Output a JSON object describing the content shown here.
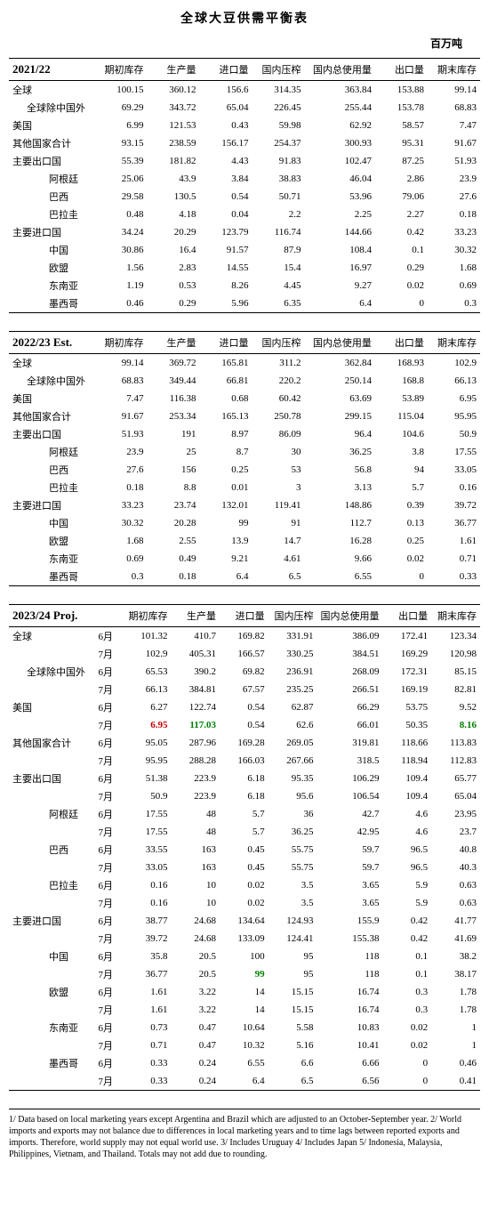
{
  "title": "全球大豆供需平衡表",
  "unit": "百万吨",
  "columns": [
    "期初库存",
    "生产量",
    "进口量",
    "国内压榨",
    "国内总使用量",
    "出口量",
    "期末库存"
  ],
  "sections": [
    {
      "name": "2021/22",
      "hasMonth": false,
      "rows": [
        {
          "label": "全球",
          "indent": 0,
          "vals": [
            "100.15",
            "360.12",
            "156.6",
            "314.35",
            "363.84",
            "153.88",
            "99.14"
          ]
        },
        {
          "label": "全球除中国外",
          "indent": 1,
          "vals": [
            "69.29",
            "343.72",
            "65.04",
            "226.45",
            "255.44",
            "153.78",
            "68.83"
          ]
        },
        {
          "label": "美国",
          "indent": 0,
          "vals": [
            "6.99",
            "121.53",
            "0.43",
            "59.98",
            "62.92",
            "58.57",
            "7.47"
          ]
        },
        {
          "label": "其他国家合计",
          "indent": 0,
          "vals": [
            "93.15",
            "238.59",
            "156.17",
            "254.37",
            "300.93",
            "95.31",
            "91.67"
          ]
        },
        {
          "label": "主要出口国",
          "indent": 0,
          "vals": [
            "55.39",
            "181.82",
            "4.43",
            "91.83",
            "102.47",
            "87.25",
            "51.93"
          ]
        },
        {
          "label": "阿根廷",
          "indent": 2,
          "vals": [
            "25.06",
            "43.9",
            "3.84",
            "38.83",
            "46.04",
            "2.86",
            "23.9"
          ]
        },
        {
          "label": "巴西",
          "indent": 2,
          "vals": [
            "29.58",
            "130.5",
            "0.54",
            "50.71",
            "53.96",
            "79.06",
            "27.6"
          ]
        },
        {
          "label": "巴拉圭",
          "indent": 2,
          "vals": [
            "0.48",
            "4.18",
            "0.04",
            "2.2",
            "2.25",
            "2.27",
            "0.18"
          ]
        },
        {
          "label": "主要进口国",
          "indent": 0,
          "vals": [
            "34.24",
            "20.29",
            "123.79",
            "116.74",
            "144.66",
            "0.42",
            "33.23"
          ]
        },
        {
          "label": "中国",
          "indent": 2,
          "vals": [
            "30.86",
            "16.4",
            "91.57",
            "87.9",
            "108.4",
            "0.1",
            "30.32"
          ]
        },
        {
          "label": "欧盟",
          "indent": 2,
          "vals": [
            "1.56",
            "2.83",
            "14.55",
            "15.4",
            "16.97",
            "0.29",
            "1.68"
          ]
        },
        {
          "label": "东南亚",
          "indent": 2,
          "vals": [
            "1.19",
            "0.53",
            "8.26",
            "4.45",
            "9.27",
            "0.02",
            "0.69"
          ]
        },
        {
          "label": "墨西哥",
          "indent": 2,
          "vals": [
            "0.46",
            "0.29",
            "5.96",
            "6.35",
            "6.4",
            "0",
            "0.3"
          ]
        }
      ]
    },
    {
      "name": "2022/23 Est.",
      "hasMonth": false,
      "rows": [
        {
          "label": "全球",
          "indent": 0,
          "vals": [
            "99.14",
            "369.72",
            "165.81",
            "311.2",
            "362.84",
            "168.93",
            "102.9"
          ]
        },
        {
          "label": "全球除中国外",
          "indent": 1,
          "vals": [
            "68.83",
            "349.44",
            "66.81",
            "220.2",
            "250.14",
            "168.8",
            "66.13"
          ]
        },
        {
          "label": "美国",
          "indent": 0,
          "vals": [
            "7.47",
            "116.38",
            "0.68",
            "60.42",
            "63.69",
            "53.89",
            "6.95"
          ]
        },
        {
          "label": "其他国家合计",
          "indent": 0,
          "vals": [
            "91.67",
            "253.34",
            "165.13",
            "250.78",
            "299.15",
            "115.04",
            "95.95"
          ]
        },
        {
          "label": "主要出口国",
          "indent": 0,
          "vals": [
            "51.93",
            "191",
            "8.97",
            "86.09",
            "96.4",
            "104.6",
            "50.9"
          ]
        },
        {
          "label": "阿根廷",
          "indent": 2,
          "vals": [
            "23.9",
            "25",
            "8.7",
            "30",
            "36.25",
            "3.8",
            "17.55"
          ]
        },
        {
          "label": "巴西",
          "indent": 2,
          "vals": [
            "27.6",
            "156",
            "0.25",
            "53",
            "56.8",
            "94",
            "33.05"
          ]
        },
        {
          "label": "巴拉圭",
          "indent": 2,
          "vals": [
            "0.18",
            "8.8",
            "0.01",
            "3",
            "3.13",
            "5.7",
            "0.16"
          ]
        },
        {
          "label": "主要进口国",
          "indent": 0,
          "vals": [
            "33.23",
            "23.74",
            "132.01",
            "119.41",
            "148.86",
            "0.39",
            "39.72"
          ]
        },
        {
          "label": "中国",
          "indent": 2,
          "vals": [
            "30.32",
            "20.28",
            "99",
            "91",
            "112.7",
            "0.13",
            "36.77"
          ]
        },
        {
          "label": "欧盟",
          "indent": 2,
          "vals": [
            "1.68",
            "2.55",
            "13.9",
            "14.7",
            "16.28",
            "0.25",
            "1.61"
          ]
        },
        {
          "label": "东南亚",
          "indent": 2,
          "vals": [
            "0.69",
            "0.49",
            "9.21",
            "4.61",
            "9.66",
            "0.02",
            "0.71"
          ]
        },
        {
          "label": "墨西哥",
          "indent": 2,
          "vals": [
            "0.3",
            "0.18",
            "6.4",
            "6.5",
            "6.55",
            "0",
            "0.33"
          ]
        }
      ]
    },
    {
      "name": "2023/24 Proj.",
      "hasMonth": true,
      "rows": [
        {
          "label": "全球",
          "indent": 0,
          "month": "6月",
          "vals": [
            "101.32",
            "410.7",
            "169.82",
            "331.91",
            "386.09",
            "172.41",
            "123.34"
          ]
        },
        {
          "label": "",
          "indent": 0,
          "month": "7月",
          "vals": [
            "102.9",
            "405.31",
            "166.57",
            "330.25",
            "384.51",
            "169.29",
            "120.98"
          ]
        },
        {
          "label": "全球除中国外",
          "indent": 1,
          "month": "6月",
          "vals": [
            "65.53",
            "390.2",
            "69.82",
            "236.91",
            "268.09",
            "172.31",
            "85.15"
          ]
        },
        {
          "label": "",
          "indent": 1,
          "month": "7月",
          "vals": [
            "66.13",
            "384.81",
            "67.57",
            "235.25",
            "266.51",
            "169.19",
            "82.81"
          ]
        },
        {
          "label": "美国",
          "indent": 0,
          "month": "6月",
          "vals": [
            "6.27",
            "122.74",
            "0.54",
            "62.87",
            "66.29",
            "53.75",
            "9.52"
          ]
        },
        {
          "label": "",
          "indent": 0,
          "month": "7月",
          "vals": [
            {
              "v": "6.95",
              "c": "red"
            },
            {
              "v": "117.03",
              "c": "green"
            },
            "0.54",
            "62.6",
            "66.01",
            "50.35",
            {
              "v": "8.16",
              "c": "green"
            }
          ]
        },
        {
          "label": "其他国家合计",
          "indent": 0,
          "month": "6月",
          "vals": [
            "95.05",
            "287.96",
            "169.28",
            "269.05",
            "319.81",
            "118.66",
            "113.83"
          ]
        },
        {
          "label": "",
          "indent": 0,
          "month": "7月",
          "vals": [
            "95.95",
            "288.28",
            "166.03",
            "267.66",
            "318.5",
            "118.94",
            "112.83"
          ]
        },
        {
          "label": "主要出口国",
          "indent": 0,
          "month": "6月",
          "vals": [
            "51.38",
            "223.9",
            "6.18",
            "95.35",
            "106.29",
            "109.4",
            "65.77"
          ]
        },
        {
          "label": "",
          "indent": 0,
          "month": "7月",
          "vals": [
            "50.9",
            "223.9",
            "6.18",
            "95.6",
            "106.54",
            "109.4",
            "65.04"
          ]
        },
        {
          "label": "阿根廷",
          "indent": 2,
          "month": "6月",
          "vals": [
            "17.55",
            "48",
            "5.7",
            "36",
            "42.7",
            "4.6",
            "23.95"
          ]
        },
        {
          "label": "",
          "indent": 2,
          "month": "7月",
          "vals": [
            "17.55",
            "48",
            "5.7",
            "36.25",
            "42.95",
            "4.6",
            "23.7"
          ]
        },
        {
          "label": "巴西",
          "indent": 2,
          "month": "6月",
          "vals": [
            "33.55",
            "163",
            "0.45",
            "55.75",
            "59.7",
            "96.5",
            "40.8"
          ]
        },
        {
          "label": "",
          "indent": 2,
          "month": "7月",
          "vals": [
            "33.05",
            "163",
            "0.45",
            "55.75",
            "59.7",
            "96.5",
            "40.3"
          ]
        },
        {
          "label": "巴拉圭",
          "indent": 2,
          "month": "6月",
          "vals": [
            "0.16",
            "10",
            "0.02",
            "3.5",
            "3.65",
            "5.9",
            "0.63"
          ]
        },
        {
          "label": "",
          "indent": 2,
          "month": "7月",
          "vals": [
            "0.16",
            "10",
            "0.02",
            "3.5",
            "3.65",
            "5.9",
            "0.63"
          ]
        },
        {
          "label": "主要进口国",
          "indent": 0,
          "month": "6月",
          "vals": [
            "38.77",
            "24.68",
            "134.64",
            "124.93",
            "155.9",
            "0.42",
            "41.77"
          ]
        },
        {
          "label": "",
          "indent": 0,
          "month": "7月",
          "vals": [
            "39.72",
            "24.68",
            "133.09",
            "124.41",
            "155.38",
            "0.42",
            "41.69"
          ]
        },
        {
          "label": "中国",
          "indent": 2,
          "month": "6月",
          "vals": [
            "35.8",
            "20.5",
            "100",
            "95",
            "118",
            "0.1",
            "38.2"
          ]
        },
        {
          "label": "",
          "indent": 2,
          "month": "7月",
          "vals": [
            "36.77",
            "20.5",
            {
              "v": "99",
              "c": "green"
            },
            "95",
            "118",
            "0.1",
            "38.17"
          ]
        },
        {
          "label": "欧盟",
          "indent": 2,
          "month": "6月",
          "vals": [
            "1.61",
            "3.22",
            "14",
            "15.15",
            "16.74",
            "0.3",
            "1.78"
          ]
        },
        {
          "label": "",
          "indent": 2,
          "month": "7月",
          "vals": [
            "1.61",
            "3.22",
            "14",
            "15.15",
            "16.74",
            "0.3",
            "1.78"
          ]
        },
        {
          "label": "东南亚",
          "indent": 2,
          "month": "6月",
          "vals": [
            "0.73",
            "0.47",
            "10.64",
            "5.58",
            "10.83",
            "0.02",
            "1"
          ]
        },
        {
          "label": "",
          "indent": 2,
          "month": "7月",
          "vals": [
            "0.71",
            "0.47",
            "10.32",
            "5.16",
            "10.41",
            "0.02",
            "1"
          ]
        },
        {
          "label": "墨西哥",
          "indent": 2,
          "month": "6月",
          "vals": [
            "0.33",
            "0.24",
            "6.55",
            "6.6",
            "6.66",
            "0",
            "0.46"
          ]
        },
        {
          "label": "",
          "indent": 2,
          "month": "7月",
          "vals": [
            "0.33",
            "0.24",
            "6.4",
            "6.5",
            "6.56",
            "0",
            "0.41"
          ]
        }
      ]
    }
  ],
  "footnotes": "1/ Data based on local marketing years except Argentina and Brazil which are adjusted to an October-September year. 2/ World imports and exports may not balance due to differences in local marketing years and to time lags between reported exports and imports. Therefore, world supply may not equal world use. 3/ Includes Uruguay 4/ Includes Japan 5/ Indonesia, Malaysia, Philippines, Vietnam, and Thailand. Totals may not add due to rounding."
}
